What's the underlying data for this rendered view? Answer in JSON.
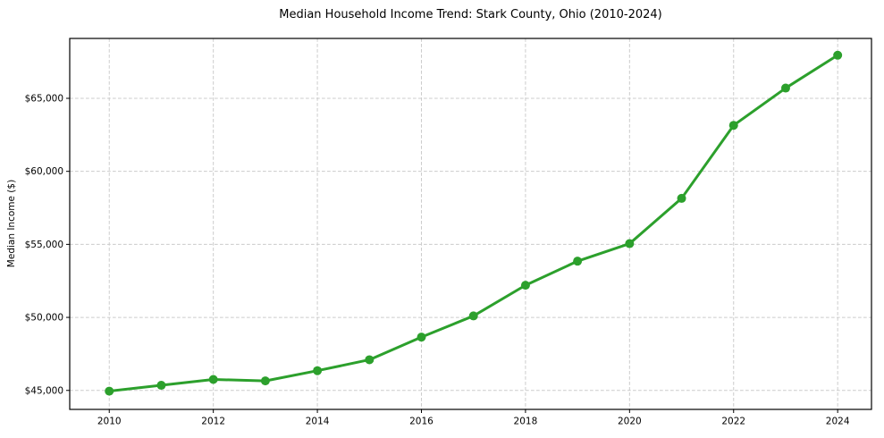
{
  "chart_data": {
    "type": "line",
    "title": "Median Household Income Trend: Stark County, Ohio (2010-2024)",
    "xlabel": "",
    "ylabel": "Median Income ($)",
    "x": [
      2010,
      2011,
      2012,
      2013,
      2014,
      2015,
      2016,
      2017,
      2018,
      2019,
      2020,
      2021,
      2022,
      2023,
      2024
    ],
    "values": [
      44950,
      45350,
      45750,
      45650,
      46350,
      47100,
      48650,
      50100,
      52200,
      53850,
      55050,
      58150,
      63150,
      65700,
      67950
    ],
    "xticks": [
      2010,
      2012,
      2014,
      2016,
      2018,
      2020,
      2022,
      2024
    ],
    "xtick_labels": [
      "2010",
      "2012",
      "2014",
      "2016",
      "2018",
      "2020",
      "2022",
      "2024"
    ],
    "yticks": [
      45000,
      50000,
      55000,
      60000,
      65000
    ],
    "ytick_labels": [
      "$45,000",
      "$50,000",
      "$55,000",
      "$60,000",
      "$65,000"
    ],
    "xlim": [
      2009.24,
      2024.65
    ],
    "ylim": [
      43700,
      69100
    ],
    "grid": true,
    "legend": false,
    "line_color": "#2ca02c",
    "grid_color": "#cccccc",
    "axis_color": "#000000",
    "background_color": "#ffffff"
  }
}
